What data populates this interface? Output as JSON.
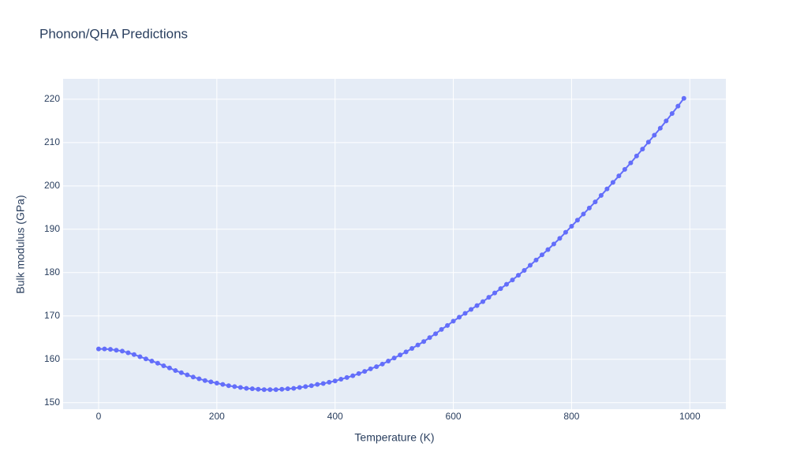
{
  "chart_data": {
    "type": "line",
    "title": "Phonon/QHA Predictions",
    "x_label": "Temperature (K)",
    "y_label": "Bulk modulus (GPa)",
    "x": [
      0,
      10,
      20,
      30,
      40,
      50,
      60,
      70,
      80,
      90,
      100,
      110,
      120,
      130,
      140,
      150,
      160,
      170,
      180,
      190,
      200,
      210,
      220,
      230,
      240,
      250,
      260,
      270,
      280,
      290,
      300,
      310,
      320,
      330,
      340,
      350,
      360,
      370,
      380,
      390,
      400,
      410,
      420,
      430,
      440,
      450,
      460,
      470,
      480,
      490,
      500,
      510,
      520,
      530,
      540,
      550,
      560,
      570,
      580,
      590,
      600,
      610,
      620,
      630,
      640,
      650,
      660,
      670,
      680,
      690,
      700,
      710,
      720,
      730,
      740,
      750,
      760,
      770,
      780,
      790,
      800,
      810,
      820,
      830,
      840,
      850,
      860,
      870,
      880,
      890,
      900,
      910,
      920,
      930,
      940,
      950,
      960,
      970,
      980,
      990
    ],
    "series": [
      {
        "color": "#636efa",
        "values": [
          162.4,
          162.4,
          162.3,
          162.1,
          161.9,
          161.5,
          161.1,
          160.6,
          160.1,
          159.6,
          159.1,
          158.5,
          158.0,
          157.4,
          156.9,
          156.4,
          155.9,
          155.5,
          155.1,
          154.8,
          154.5,
          154.2,
          153.9,
          153.7,
          153.5,
          153.3,
          153.2,
          153.1,
          153.0,
          153.0,
          153.0,
          153.1,
          153.2,
          153.3,
          153.5,
          153.7,
          153.9,
          154.2,
          154.4,
          154.7,
          155.0,
          155.4,
          155.8,
          156.2,
          156.7,
          157.2,
          157.8,
          158.3,
          158.9,
          159.6,
          160.3,
          161.0,
          161.7,
          162.5,
          163.3,
          164.1,
          165.0,
          165.9,
          166.9,
          167.8,
          168.8,
          169.7,
          170.6,
          171.5,
          172.4,
          173.3,
          174.3,
          175.3,
          176.3,
          177.3,
          178.3,
          179.4,
          180.5,
          181.7,
          182.9,
          184.1,
          185.3,
          186.6,
          187.9,
          189.3,
          190.7,
          192.1,
          193.5,
          194.9,
          196.3,
          197.8,
          199.3,
          200.8,
          202.3,
          203.8,
          205.3,
          206.9,
          208.5,
          210.1,
          211.7,
          213.3,
          215.0,
          216.7,
          218.4,
          220.2
        ]
      }
    ],
    "xlim": [
      -60,
      1061
    ],
    "ylim": [
      148.5,
      224.7
    ],
    "xticks": [
      0,
      200,
      400,
      600,
      800,
      1000
    ],
    "yticks": [
      150,
      160,
      170,
      180,
      190,
      200,
      210,
      220
    ],
    "grid": true
  }
}
